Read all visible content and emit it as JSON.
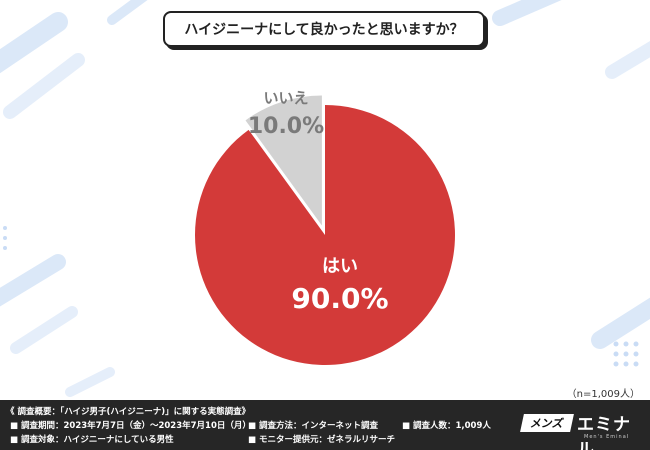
{
  "question": "ハイジニーナにして良かったと思いますか？",
  "chart_data": {
    "type": "pie",
    "slices": [
      {
        "label": "はい",
        "value": 90.0,
        "display": "90.0%",
        "color": "#d33a39"
      },
      {
        "label": "いいえ",
        "value": 10.0,
        "display": "10.0%",
        "color": "#d2d2d2"
      }
    ],
    "note": "（n=1,009人）"
  },
  "footer": {
    "title": "《 調査概要：「ハイジ男子(ハイジニーナ)」に関する実態調査》",
    "items": [
      "■ 調査期間：2023年7月7日（金）〜2023年7月10日（月）",
      "■ 調査方法：インターネット調査",
      "■ 調査人数：1,009人",
      "■ 調査対象：ハイジニーナにしている男性",
      "■ モニター提供元：ゼネラルリサーチ"
    ],
    "brand_box": "メンズ",
    "brand_main": "エミナル",
    "brand_sub": "Men's Eminal"
  },
  "colors": {
    "yes": "#d33a39",
    "no": "#d2d2d2",
    "footer_bg": "#262626",
    "decor": "#c9dcf5"
  }
}
